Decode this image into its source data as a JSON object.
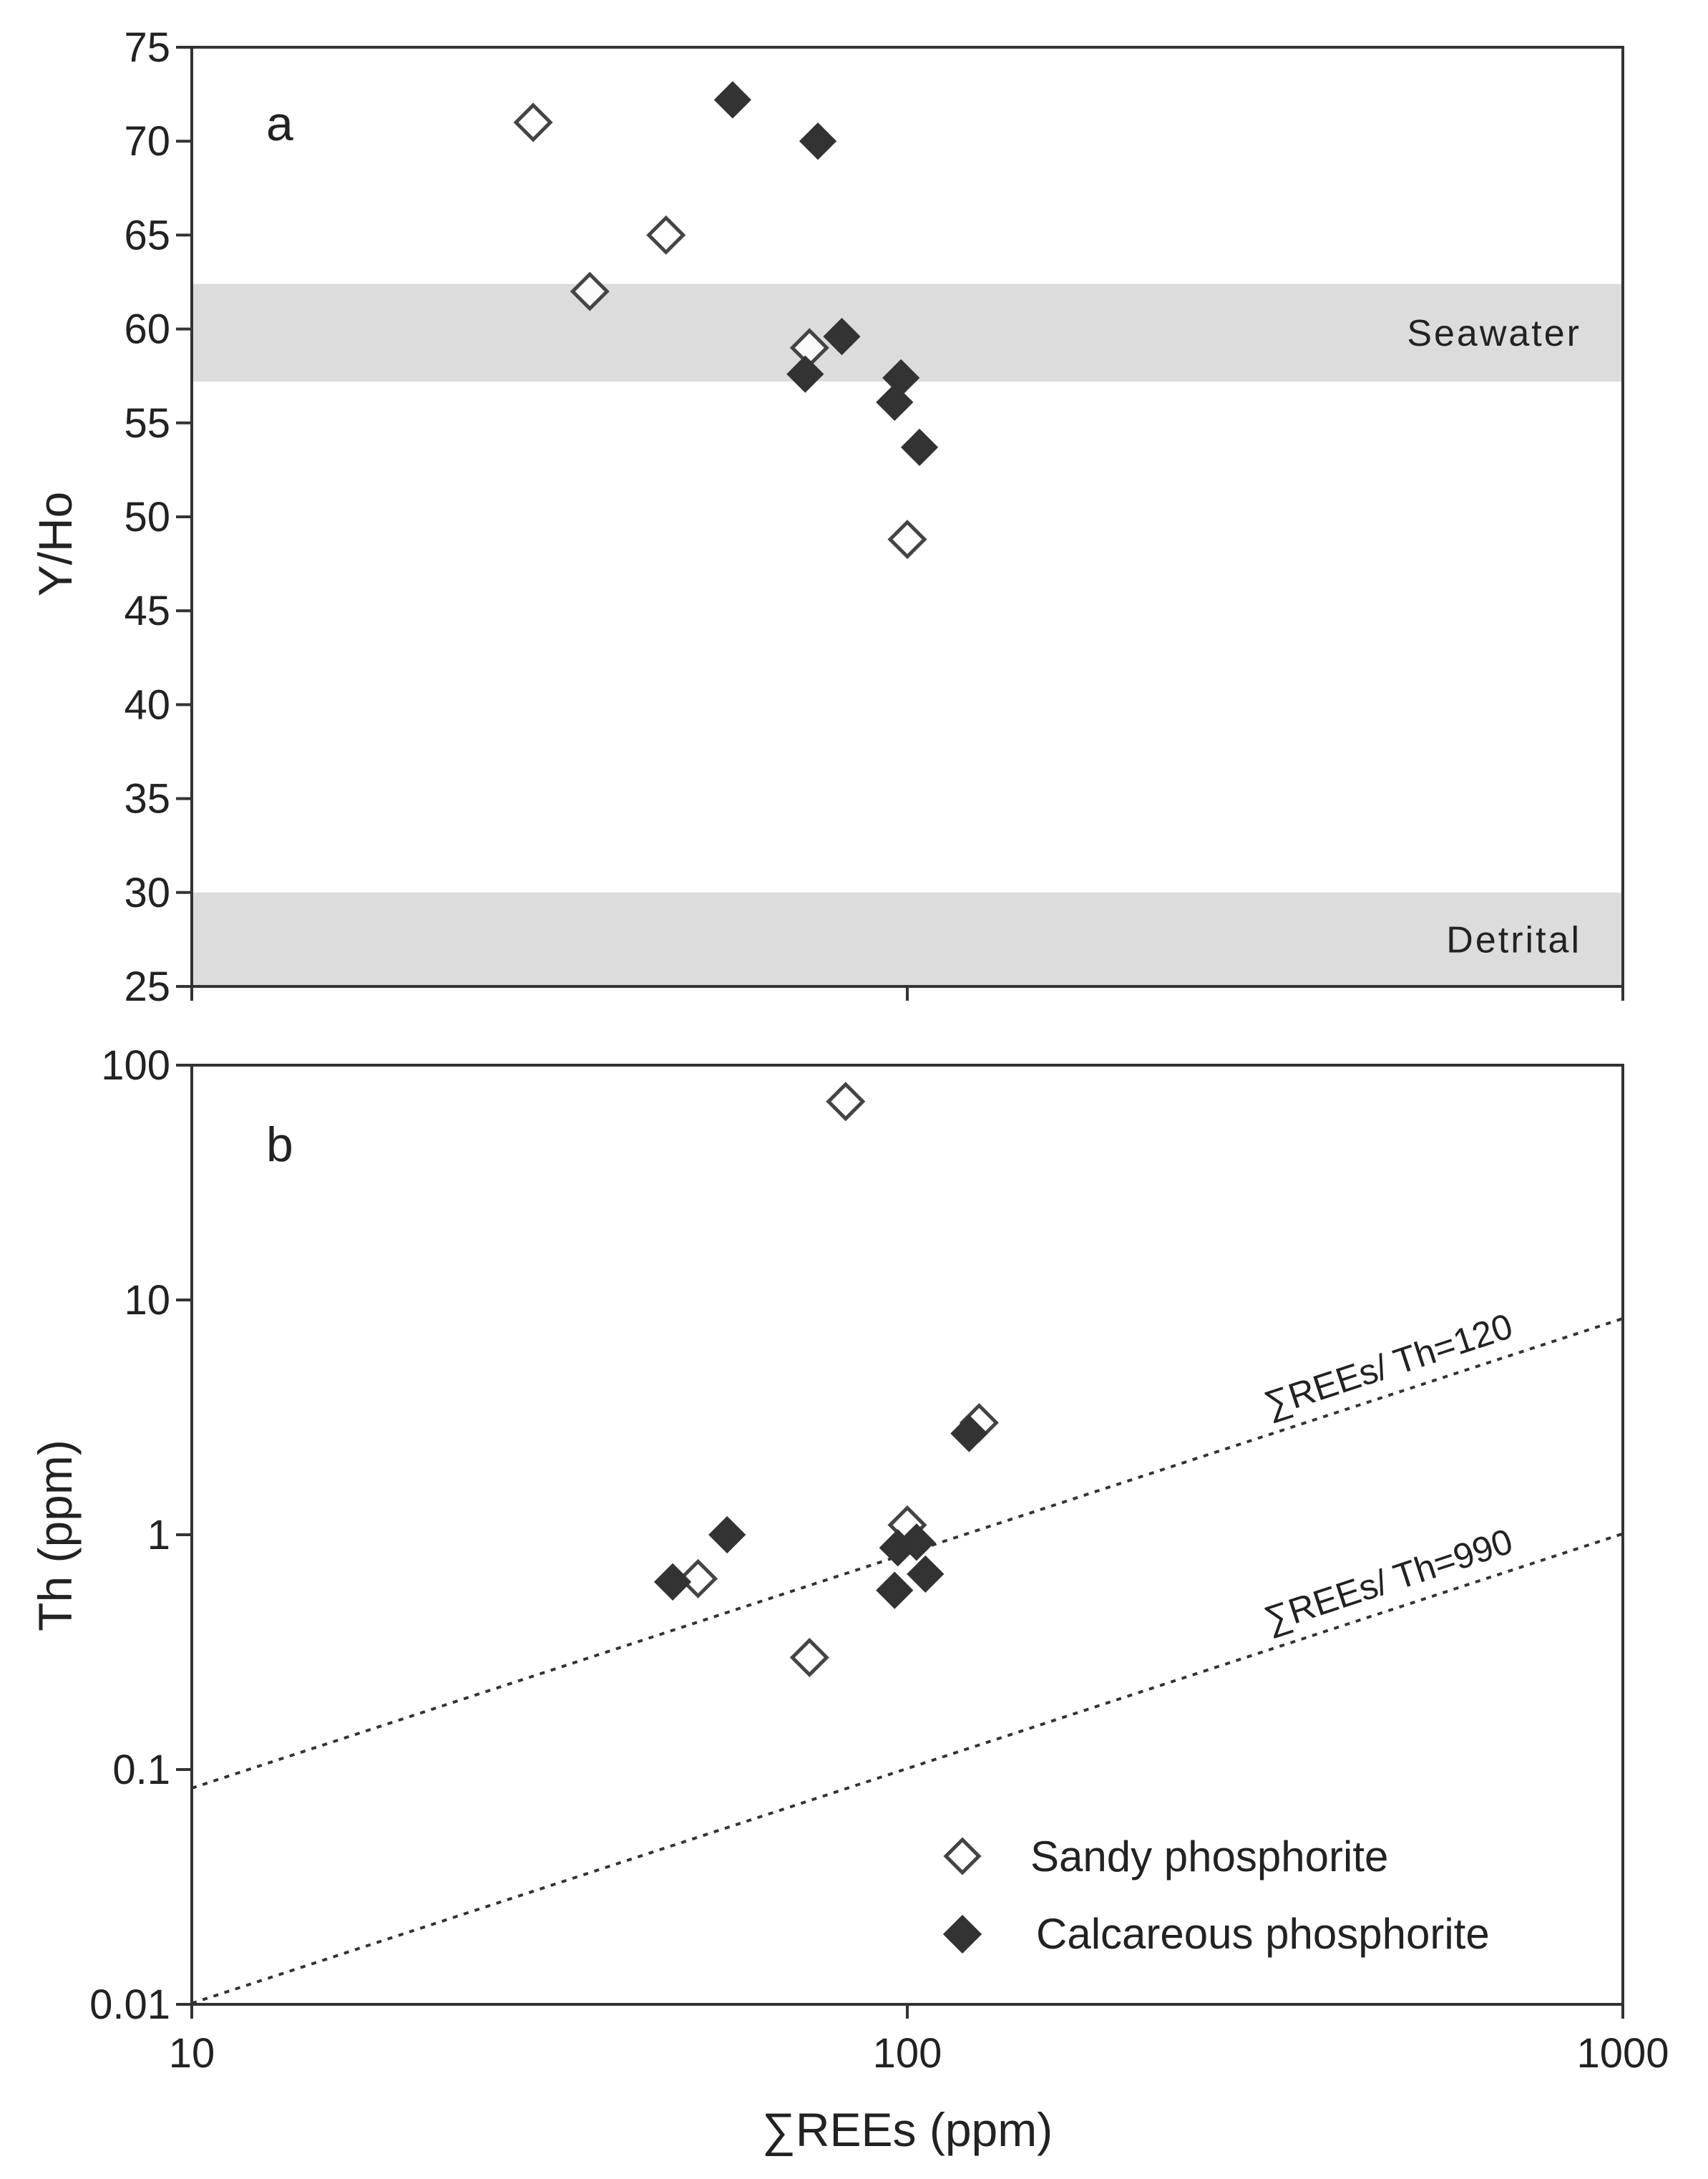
{
  "figure": {
    "shared_x_title": "∑REEs  (ppm)",
    "x_tick_labels": [
      "10",
      "100",
      "1000"
    ]
  },
  "legend": {
    "sandy": "Sandy phosphorite",
    "calcareous": "Calcareous phosphorite"
  },
  "colors": {
    "band": "#dcdcdc",
    "filled_marker": "#333333",
    "open_marker_stroke": "#444444",
    "axis": "#333333"
  },
  "chart_data": [
    {
      "panel": "a",
      "type": "scatter",
      "title": "a",
      "xlabel": "∑REEs  (ppm)",
      "ylabel": "Y/Ho",
      "xscale": "log",
      "xlim": [
        10,
        1000
      ],
      "ylim": [
        25,
        75
      ],
      "y_ticks": [
        25,
        30,
        35,
        40,
        45,
        50,
        55,
        60,
        65,
        70,
        75
      ],
      "y_tick_labels": [
        "25",
        "30",
        "35",
        "40",
        "45",
        "50",
        "55",
        "60",
        "65",
        "70",
        "75"
      ],
      "bands": [
        {
          "label": "Seawater",
          "y_range": [
            57.2,
            62.4
          ]
        },
        {
          "label": "Detrital",
          "y_range": [
            25,
            30
          ]
        }
      ],
      "series": [
        {
          "name": "Sandy phosphorite",
          "marker": "open-diamond",
          "x": [
            30,
            36,
            46,
            73,
            100
          ],
          "y": [
            71,
            62,
            65,
            59,
            48.8
          ]
        },
        {
          "name": "Calcareous phosphorite",
          "marker": "filled-diamond",
          "x": [
            57,
            75,
            72,
            81,
            98,
            96,
            104
          ],
          "y": [
            72.2,
            70,
            57.6,
            59.6,
            57.4,
            56.1,
            53.7
          ]
        }
      ]
    },
    {
      "panel": "b",
      "type": "scatter",
      "title": "b",
      "xlabel": "∑REEs  (ppm)",
      "ylabel": "Th (ppm)",
      "xscale": "log",
      "yscale": "log",
      "xlim": [
        10,
        1000
      ],
      "ylim": [
        0.01,
        100
      ],
      "y_ticks": [
        0.01,
        0.1,
        1,
        10,
        100
      ],
      "y_tick_labels": [
        "0.01",
        "0.1",
        "1",
        "10",
        "100"
      ],
      "reference_lines": [
        {
          "label": "∑REEs/ Th=120",
          "ratio": 120
        },
        {
          "label": "∑REEs/ Th=990",
          "ratio": 990
        }
      ],
      "series": [
        {
          "name": "Sandy phosphorite",
          "marker": "open-diamond",
          "x": [
            82,
            51,
            73,
            100,
            126
          ],
          "y": [
            70,
            0.65,
            0.3,
            1.1,
            3.0
          ]
        },
        {
          "name": "Calcareous phosphorite",
          "marker": "filled-diamond",
          "x": [
            47,
            56,
            97,
            96,
            103,
            106,
            122
          ],
          "y": [
            0.63,
            1.0,
            0.88,
            0.58,
            0.93,
            0.68,
            2.7
          ]
        }
      ]
    }
  ]
}
